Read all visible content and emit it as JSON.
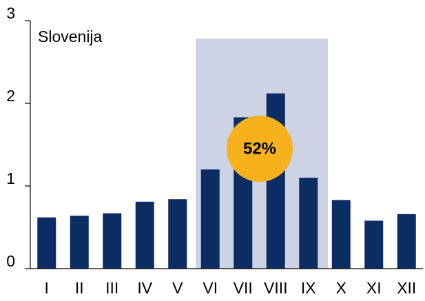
{
  "chart_data": {
    "type": "bar",
    "title": "Slovenija",
    "categories": [
      "I",
      "II",
      "III",
      "IV",
      "V",
      "VI",
      "VII",
      "VIII",
      "IX",
      "X",
      "XI",
      "XII"
    ],
    "values": [
      0.62,
      0.64,
      0.67,
      0.81,
      0.84,
      1.2,
      1.83,
      2.12,
      1.1,
      0.83,
      0.58,
      0.66
    ],
    "color": "#0b2d63",
    "annotation": "52%",
    "ylim": [
      0,
      3
    ],
    "yticks": [
      0,
      1,
      2,
      3
    ],
    "grid": false
  }
}
